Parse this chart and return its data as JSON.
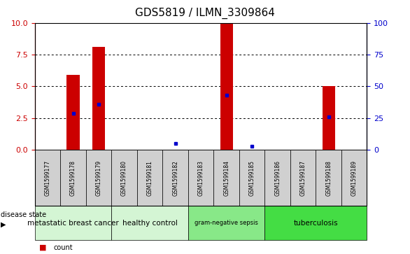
{
  "title": "GDS5819 / ILMN_3309864",
  "samples": [
    "GSM1599177",
    "GSM1599178",
    "GSM1599179",
    "GSM1599180",
    "GSM1599181",
    "GSM1599182",
    "GSM1599183",
    "GSM1599184",
    "GSM1599185",
    "GSM1599186",
    "GSM1599187",
    "GSM1599188",
    "GSM1599189"
  ],
  "counts": [
    0,
    5.9,
    8.1,
    0,
    0,
    0,
    0,
    9.9,
    0,
    0,
    0,
    5.0,
    0
  ],
  "percentile_ranks": [
    0,
    29,
    36,
    0,
    0,
    5,
    0,
    43,
    3,
    0,
    0,
    26,
    0
  ],
  "groups": [
    {
      "label": "metastatic breast cancer",
      "start": 0,
      "end": 3,
      "color": "#d4f5d4"
    },
    {
      "label": "healthy control",
      "start": 3,
      "end": 6,
      "color": "#d4f5d4"
    },
    {
      "label": "gram-negative sepsis",
      "start": 6,
      "end": 9,
      "color": "#88e888"
    },
    {
      "label": "tuberculosis",
      "start": 9,
      "end": 13,
      "color": "#44dd44"
    }
  ],
  "ylim_left": [
    0,
    10
  ],
  "ylim_right": [
    0,
    100
  ],
  "yticks_left": [
    0,
    2.5,
    5,
    7.5,
    10
  ],
  "yticks_right": [
    0,
    25,
    50,
    75,
    100
  ],
  "bar_color": "#cc0000",
  "dot_color": "#0000cc",
  "tick_label_color_left": "#cc0000",
  "tick_label_color_right": "#0000cc",
  "sample_box_color": "#d0d0d0",
  "title_fontsize": 11
}
